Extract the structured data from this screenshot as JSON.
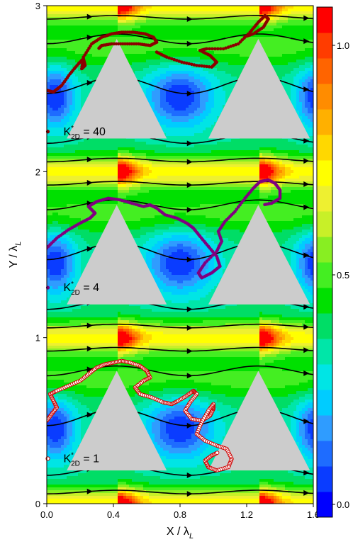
{
  "chart_data": {
    "type": "heatmap",
    "xlabel": "X / λ",
    "xlabel_sub": "L",
    "ylabel": "Y / λ",
    "ylabel_sub": "L",
    "xlim": [
      0,
      1.6
    ],
    "ylim": [
      0,
      3
    ],
    "xticks": [
      "0.0",
      "0.4",
      "0.8",
      "1.2",
      "1.6"
    ],
    "xtick_values": [
      0,
      0.4,
      0.8,
      1.2,
      1.6
    ],
    "yticks": [
      "0",
      "1",
      "2",
      "3"
    ],
    "ytick_values": [
      0,
      1,
      2,
      3
    ],
    "colorbar": {
      "range": [
        0,
        1
      ],
      "levels": 20,
      "ticks": [
        "0.0",
        "0.5",
        "1.0"
      ],
      "tick_values": [
        0,
        0.5,
        1.0
      ],
      "colors": [
        "#0000ff",
        "#0a3cff",
        "#1e6cff",
        "#2f9cff",
        "#00ccff",
        "#00e5e5",
        "#00e6a8",
        "#00dd66",
        "#00e000",
        "#44ee22",
        "#88ee22",
        "#c8f028",
        "#eef030",
        "#ffff00",
        "#ffd800",
        "#ffb000",
        "#ff8c00",
        "#ff6400",
        "#ff3c00",
        "#ff0000"
      ]
    },
    "obstacles": [
      {
        "apex": [
          0.42,
          2.8
        ],
        "base_y": 2.2,
        "base_x": [
          0.12,
          0.72
        ]
      },
      {
        "apex": [
          1.27,
          2.8
        ],
        "base_y": 2.2,
        "base_x": [
          0.97,
          1.58
        ]
      },
      {
        "apex": [
          0.42,
          1.8
        ],
        "base_y": 1.2,
        "base_x": [
          0.12,
          0.72
        ]
      },
      {
        "apex": [
          1.27,
          1.8
        ],
        "base_y": 1.2,
        "base_x": [
          0.97,
          1.58
        ]
      },
      {
        "apex": [
          0.42,
          0.8
        ],
        "base_y": 0.2,
        "base_x": [
          0.12,
          0.72
        ]
      },
      {
        "apex": [
          1.27,
          0.8
        ],
        "base_y": 0.2,
        "base_x": [
          0.97,
          1.58
        ]
      }
    ],
    "series": [
      {
        "name": "K*2D = 40",
        "label_main": "K",
        "label_sup": "*",
        "label_sub": "2D",
        "label_value": "= 40",
        "marker": "filled",
        "color": "#8b0000",
        "x": [
          0.0,
          0.04,
          0.09,
          0.14,
          0.19,
          0.22,
          0.23,
          0.21,
          0.22,
          0.27,
          0.33,
          0.39,
          0.45,
          0.52,
          0.59,
          0.64,
          0.66,
          0.62,
          0.55,
          0.47,
          0.39,
          0.33,
          0.31
        ],
        "y": [
          2.49,
          2.48,
          2.52,
          2.59,
          2.65,
          2.68,
          2.64,
          2.62,
          2.69,
          2.77,
          2.81,
          2.83,
          2.84,
          2.84,
          2.83,
          2.81,
          2.78,
          2.76,
          2.77,
          2.77,
          2.77,
          2.76,
          2.74
        ]
      },
      {
        "name": "K*2D = 40 (right)",
        "label_main": "",
        "label_sup": "",
        "label_sub": "",
        "label_value": "",
        "marker": "filled",
        "color": "#8b0000",
        "x": [
          0.66,
          0.72,
          0.81,
          0.9,
          0.99,
          1.02,
          0.98,
          0.92,
          0.96,
          1.06,
          1.15,
          1.22,
          1.27,
          1.31,
          1.33,
          1.3,
          1.24,
          1.18
        ],
        "y": [
          2.72,
          2.69,
          2.66,
          2.64,
          2.63,
          2.66,
          2.7,
          2.73,
          2.74,
          2.74,
          2.77,
          2.84,
          2.9,
          2.94,
          2.92,
          2.87,
          2.83,
          2.81
        ]
      },
      {
        "name": "K*2D = 4",
        "label_main": "K",
        "label_sup": "*",
        "label_sub": "2D",
        "label_value": "= 4",
        "marker": "filled",
        "color": "#800080",
        "x": [
          0.0,
          0.06,
          0.13,
          0.2,
          0.26,
          0.29,
          0.27,
          0.25,
          0.3,
          0.37,
          0.44,
          0.51,
          0.58,
          0.62,
          0.66,
          0.71,
          0.78,
          0.84,
          0.88,
          0.92,
          0.97,
          1.02,
          1.04,
          0.99,
          0.93,
          0.91,
          0.95,
          1.02,
          1.05,
          1.03,
          1.07,
          1.13,
          1.19,
          1.24,
          1.28,
          1.33,
          1.37,
          1.4,
          1.4,
          1.35,
          1.3
        ],
        "y": [
          1.54,
          1.6,
          1.65,
          1.69,
          1.72,
          1.75,
          1.77,
          1.79,
          1.82,
          1.84,
          1.83,
          1.81,
          1.79,
          1.8,
          1.78,
          1.74,
          1.72,
          1.69,
          1.66,
          1.61,
          1.55,
          1.49,
          1.43,
          1.39,
          1.36,
          1.39,
          1.45,
          1.52,
          1.58,
          1.64,
          1.7,
          1.76,
          1.84,
          1.9,
          1.94,
          1.95,
          1.93,
          1.89,
          1.84,
          1.81,
          1.8
        ]
      },
      {
        "name": "K*2D = 1",
        "label_main": "K",
        "label_sup": "*",
        "label_sub": "2D",
        "label_value": "= 1",
        "marker": "open",
        "color": "#cc0000",
        "x": [
          0.0,
          0.03,
          0.06,
          0.04,
          0.02,
          0.06,
          0.13,
          0.2,
          0.25,
          0.3,
          0.35,
          0.4,
          0.45,
          0.5,
          0.56,
          0.6,
          0.62,
          0.58,
          0.53,
          0.56,
          0.63,
          0.7,
          0.75,
          0.79,
          0.84,
          0.88,
          0.9,
          0.86,
          0.83,
          0.87,
          0.93,
          0.98,
          1.0,
          1.0,
          0.97,
          0.93,
          0.9,
          0.95,
          1.02,
          1.08,
          1.11,
          1.09,
          1.02,
          0.97,
          0.95,
          0.99,
          1.03
        ],
        "y": [
          0.5,
          0.54,
          0.58,
          0.62,
          0.66,
          0.68,
          0.71,
          0.74,
          0.78,
          0.82,
          0.84,
          0.85,
          0.86,
          0.85,
          0.83,
          0.8,
          0.76,
          0.74,
          0.7,
          0.66,
          0.64,
          0.61,
          0.6,
          0.62,
          0.65,
          0.68,
          0.66,
          0.61,
          0.56,
          0.51,
          0.5,
          0.53,
          0.57,
          0.6,
          0.56,
          0.49,
          0.42,
          0.38,
          0.35,
          0.33,
          0.27,
          0.22,
          0.2,
          0.22,
          0.26,
          0.29,
          0.31
        ]
      }
    ]
  }
}
